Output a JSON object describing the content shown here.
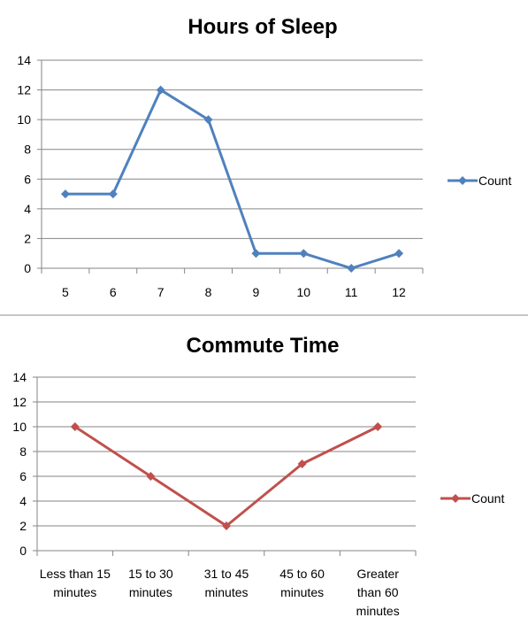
{
  "chart_data": [
    {
      "type": "line",
      "title": "Hours of Sleep",
      "xlabel": "",
      "ylabel": "",
      "categories": [
        "5",
        "6",
        "7",
        "8",
        "9",
        "10",
        "11",
        "12"
      ],
      "series": [
        {
          "name": "Count",
          "values": [
            5,
            5,
            12,
            10,
            1,
            1,
            0,
            1
          ],
          "color": "#4f81bd"
        }
      ],
      "ylim": [
        0,
        14
      ],
      "yticks": [
        0,
        2,
        4,
        6,
        8,
        10,
        12,
        14
      ],
      "grid": true,
      "legend": "right",
      "marker": "diamond"
    },
    {
      "type": "line",
      "title": "Commute Time",
      "xlabel": "",
      "ylabel": "",
      "categories": [
        [
          "Less than 15",
          "minutes"
        ],
        [
          "15 to 30",
          "minutes"
        ],
        [
          "31 to 45",
          "minutes"
        ],
        [
          "45 to 60",
          "minutes"
        ],
        [
          "Greater",
          "than 60",
          "minutes"
        ]
      ],
      "series": [
        {
          "name": "Count",
          "values": [
            10,
            6,
            2,
            7,
            10
          ],
          "color": "#c0504d"
        }
      ],
      "ylim": [
        0,
        14
      ],
      "yticks": [
        0,
        2,
        4,
        6,
        8,
        10,
        12,
        14
      ],
      "grid": true,
      "legend": "right",
      "marker": "diamond"
    }
  ]
}
